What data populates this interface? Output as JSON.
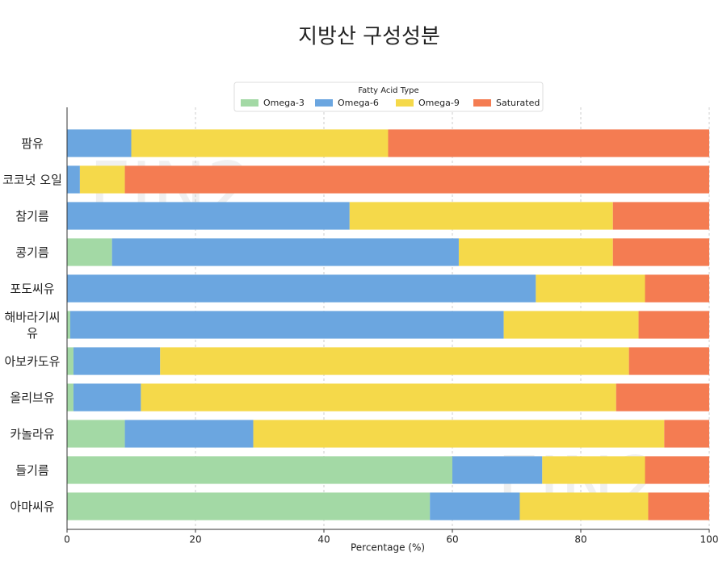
{
  "chart_data": {
    "type": "stacked_barh",
    "title": "지방산 구성성분",
    "x_label": "Percentage (%)",
    "legend_title": "Fatty Acid Type",
    "legend_position": "upper center",
    "grid": true,
    "watermark": "FIN2",
    "categories": [
      "팜유",
      "코코넛 오일",
      "참기름",
      "콩기름",
      "포도씨유",
      "해바라기씨유",
      "아보카도유",
      "올리브유",
      "카놀라유",
      "들기름",
      "아마씨유"
    ],
    "series": [
      {
        "name": "Omega-3",
        "color": "#a3d9a5",
        "values": [
          0,
          0,
          0,
          7,
          0,
          0.5,
          1,
          1,
          9,
          60,
          56.5
        ]
      },
      {
        "name": "Omega-6",
        "color": "#6ba6e0",
        "values": [
          10,
          2,
          44,
          54,
          73,
          67.5,
          13.5,
          10.5,
          20,
          14,
          14
        ]
      },
      {
        "name": "Omega-9",
        "color": "#f5d94a",
        "values": [
          40,
          7,
          41,
          24,
          17,
          21,
          73,
          74,
          64,
          16,
          20
        ]
      },
      {
        "name": "Saturated",
        "color": "#f47c52",
        "values": [
          50,
          91,
          15,
          15,
          10,
          11,
          12.5,
          14.5,
          7,
          10,
          9.5
        ]
      }
    ],
    "xlim": [
      0,
      100
    ],
    "xticks": [
      0,
      20,
      40,
      60,
      80,
      100
    ]
  }
}
